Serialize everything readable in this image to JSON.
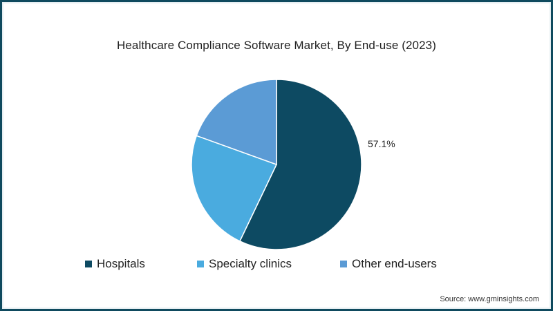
{
  "chart_data": {
    "type": "pie",
    "title": "Healthcare Compliance Software Market, By End-use (2023)",
    "categories": [
      "Hospitals",
      "Specialty clinics",
      "Other end-users"
    ],
    "values": [
      57.1,
      23.4,
      19.5
    ],
    "colors": [
      "#0d4a62",
      "#4aabdf",
      "#5b9bd5"
    ],
    "data_labels": [
      {
        "category": "Hospitals",
        "text": "57.1%"
      }
    ],
    "legend_position": "bottom",
    "start_angle": "12 o'clock, clockwise"
  },
  "labels": {
    "title": "Healthcare Compliance Software Market, By End-use (2023)",
    "hospitals_pct": "57.1%",
    "legend": [
      "Hospitals",
      "Specialty clinics",
      "Other end-users"
    ],
    "source": "Source: www.gminsights.com"
  }
}
